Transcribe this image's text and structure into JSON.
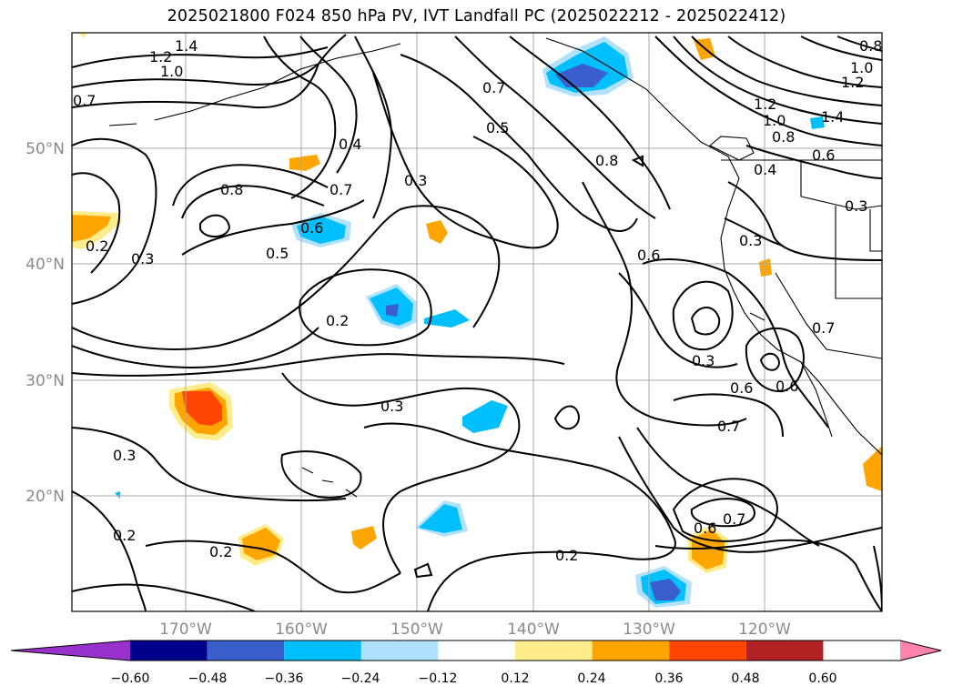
{
  "title": "2025021800 F024 850 hPa PV, IVT Landfall PC (2025022212 - 2025022412)",
  "map": {
    "lat_labels": [
      "50°N",
      "40°N",
      "30°N",
      "20°N"
    ],
    "lon_labels": [
      "170°W",
      "160°W",
      "150°W",
      "140°W",
      "130°W",
      "120°W"
    ],
    "contour_labels": [
      "1.4",
      "1.2",
      "1.0",
      "0.7",
      "0.4",
      "0.8",
      "0.7",
      "0.6",
      "0.5",
      "0.3",
      "0.2",
      "0.3",
      "0.2",
      "0.3",
      "0.3",
      "0.2",
      "0.2",
      "0.7",
      "0.5",
      "0.8",
      "0.6",
      "0.3",
      "0.4",
      "0.3",
      "0.7",
      "0.6",
      "0.6",
      "0.7",
      "0.6",
      "0.7",
      "0.2",
      "0.3",
      "1.2",
      "1.0",
      "0.8",
      "1.4",
      "1.2",
      "1.0",
      "0.8",
      "0.6"
    ]
  },
  "colorbar": {
    "colors": [
      "#9932cc",
      "#00008b",
      "#3a5fcd",
      "#00bfff",
      "#b0e2ff",
      "#ffffff",
      "#ffec8b",
      "#ffa500",
      "#ff4500",
      "#b22222",
      "#ff82ab"
    ],
    "tick_labels": [
      "−0.60",
      "−0.48",
      "−0.36",
      "−0.24",
      "−0.12",
      "0.12",
      "0.24",
      "0.36",
      "0.48",
      "0.60"
    ]
  }
}
